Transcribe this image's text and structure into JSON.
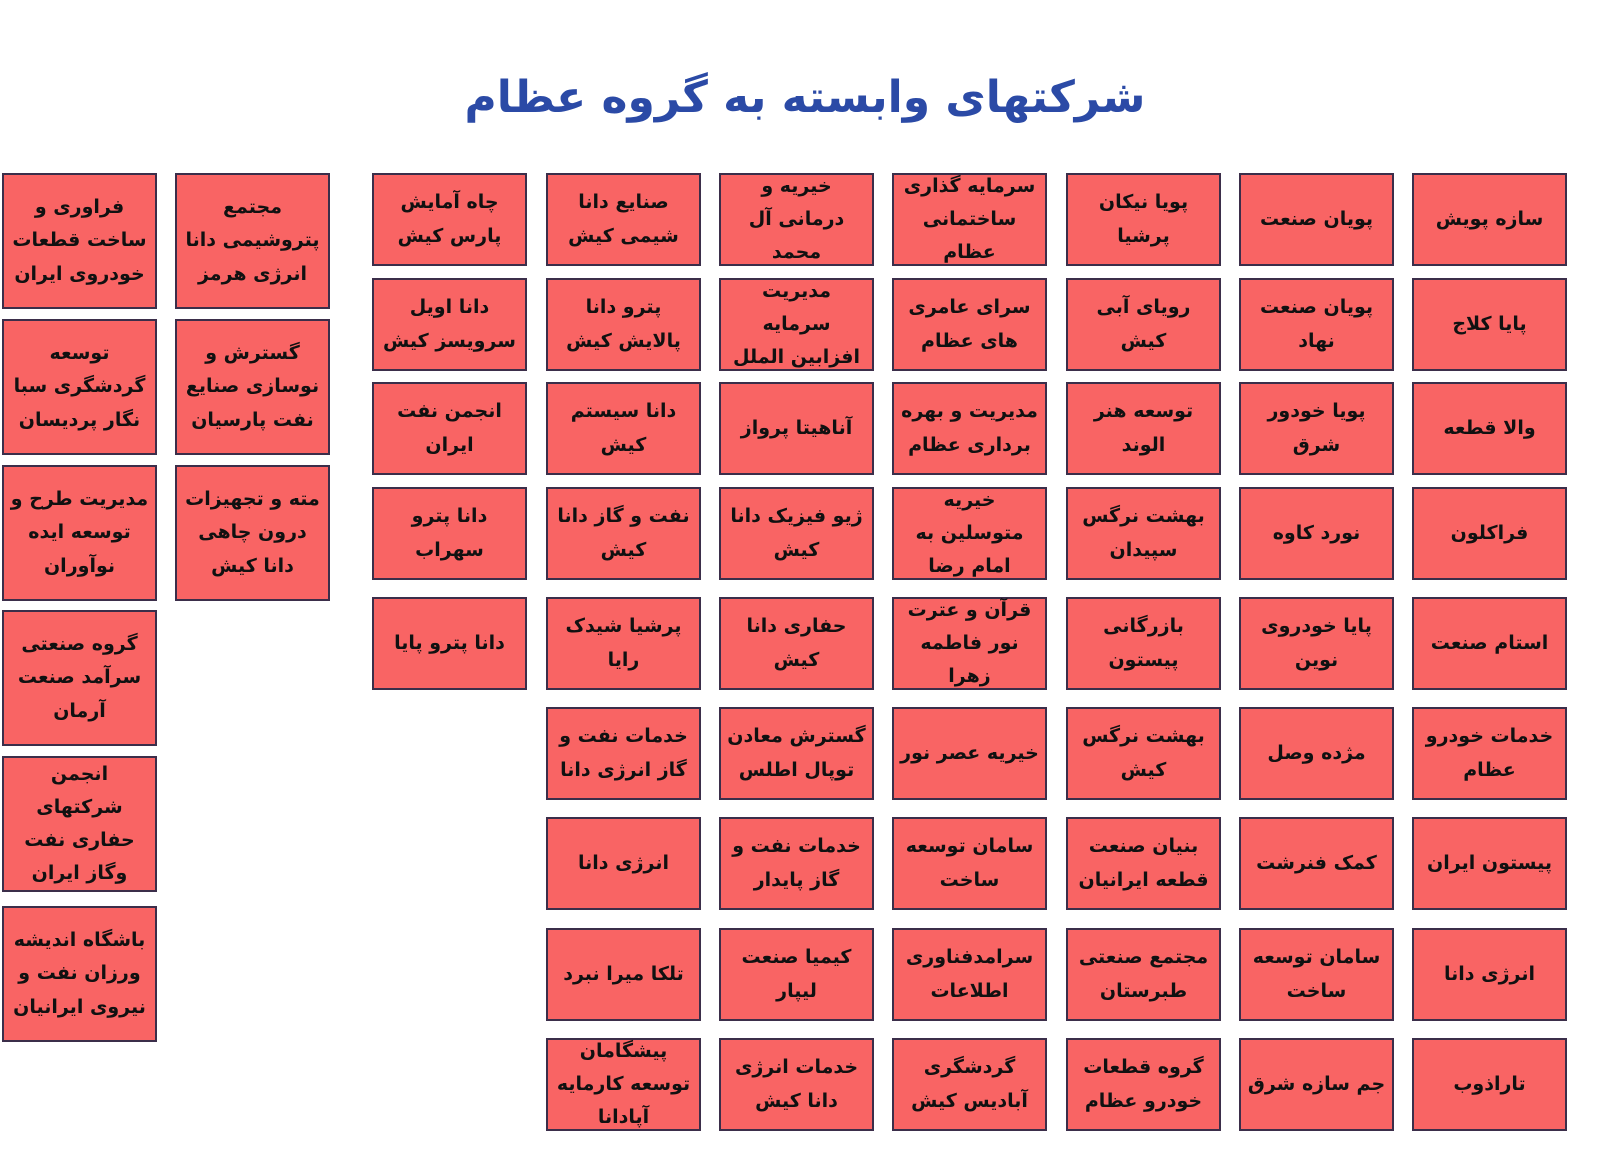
{
  "title": "شرکتهای وابسته به گروه عظام",
  "colors": {
    "box_fill": "#f96464",
    "box_border": "#3b2e4a",
    "title": "#2b4aa6"
  },
  "grid_columns": [
    [
      "سازه پویش",
      "پایا کلاج",
      "والا قطعه",
      "فراکلون",
      "استام صنعت",
      "خدمات خودرو عظام",
      "پیستون ایران",
      "انرژی دانا",
      "تاراذوب"
    ],
    [
      "پویان صنعت",
      "پویان صنعت نهاد",
      "پویا خودور شرق",
      "نورد کاوه",
      "پایا خودروی نوین",
      "مژده وصل",
      "کمک فنرشت",
      "سامان توسعه ساخت",
      "جم سازه شرق"
    ],
    [
      "پویا نیکان پرشیا",
      "رویای آبی کیش",
      "توسعه هنر الوند",
      "بهشت نرگس سپیدان",
      "بازرگانی پیستون",
      "بهشت نرگس کیش",
      "بنیان صنعت قطعه ایرانیان",
      "مجتمع صنعتی طبرستان",
      "گروه قطعات خودرو عظام"
    ],
    [
      "سرمایه گذاری ساختمانی عظام",
      "سرای عامری های عظام",
      "مدیریت و بهره برداری عظام",
      "خیریه متوسلین به امام رضا",
      "قرآن و عترت نور فاطمه زهرا",
      "خیریه عصر نور",
      "سامان توسعه ساخت",
      "سرامدفناوری اطلاعات",
      "گردشگری آبادیس کیش"
    ],
    [
      "خیریه و درمانی آل محمد",
      "مدیریت سرمایه افزابین الملل",
      "آناهیتا پرواز",
      "ژیو فیزیک دانا کیش",
      "حفاری دانا کیش",
      "گسترش معادن توپال اطلس",
      "خدمات نفت و گاز پایدار",
      "کیمیا صنعت لیپار",
      "خدمات انرژی دانا کیش"
    ],
    [
      "صنایع دانا شیمی کیش",
      "پترو دانا پالایش کیش",
      "دانا سیستم کیش",
      "نفت و گاز دانا کیش",
      "پرشیا شیدک رایا",
      "خدمات نفت و گاز انرژی دانا",
      "انرژی دانا",
      "تلکا میرا نبرد",
      "پیشگامان توسعه کارمایه آپادانا"
    ],
    [
      "چاه آمایش پارس کیش",
      "دانا اویل سرویسز کیش",
      "انجمن نفت ایران",
      "دانا پترو سهراب",
      "دانا پترو پایا"
    ]
  ],
  "tall_columns": [
    [
      "مجتمع پتروشیمی دانا انرژی هرمز",
      "گسترش و نوسازی صنایع نفت پارسیان",
      "مته و تجهیزات درون چاهی دانا کیش"
    ],
    [
      "فراوری و ساخت قطعات خودروی ایران",
      "توسعه گردشگری سبا نگار پردیسان",
      "مدیریت طرح و توسعه ایده نوآوران",
      "گروه صنعتی سرآمد صنعت آرمان",
      "انجمن شرکتهای حفاری نفت وگاز ایران",
      "باشگاه اندیشه ورزان نفت و نیروی ایرانیان"
    ]
  ]
}
